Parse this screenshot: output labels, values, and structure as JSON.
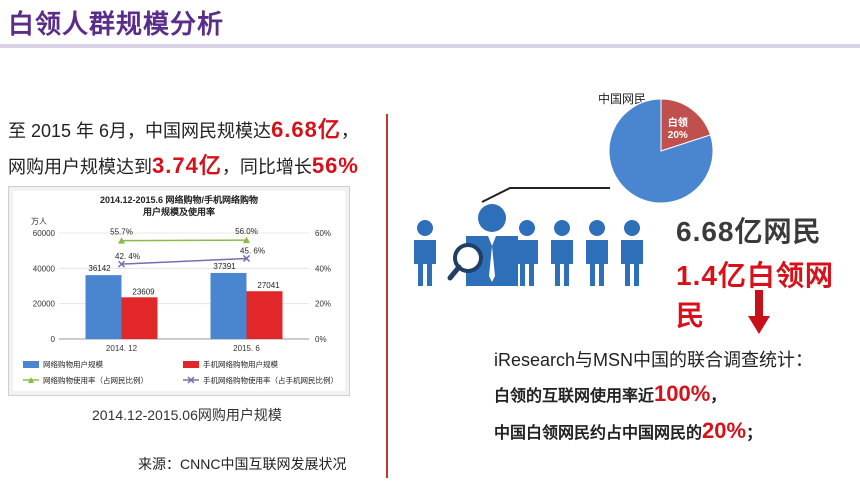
{
  "header": {
    "title": "白领人群规模分析"
  },
  "left": {
    "stats_line1_prefix": "至 2015 年 6月，中国网民规模达",
    "stats_line1_value": "6.68亿",
    "stats_line1_suffix": "，",
    "stats_line2_prefix": "网购用户规模达到",
    "stats_line2_value": "3.74亿",
    "stats_line2_mid": "，同比增长",
    "stats_line2_value2": "56%",
    "caption": "2014.12-2015.06网购用户规模",
    "source": "来源：CNNC中国互联网发展状况"
  },
  "colors": {
    "title": "#5b2d8a",
    "bar_blue": "#4a86d0",
    "bar_red": "#e2272b",
    "line_green": "#8dbb45",
    "line_purple": "#7b6bb0",
    "pie_blue": "#4a86d0",
    "pie_red": "#c0504d",
    "highlight": "#d7101a"
  },
  "chart_data": [
    {
      "type": "bar",
      "title_line1": "2014.12-2015.6 网络购物/手机网络购物",
      "title_line2": "用户规模及使用率",
      "y_unit": "万人",
      "categories": [
        "2014. 12",
        "2015. 6"
      ],
      "yticks": [
        "0",
        "20000",
        "40000",
        "60000"
      ],
      "y2ticks": [
        "0%",
        "20%",
        "40%",
        "60%"
      ],
      "ylim": [
        0,
        60000
      ],
      "y2lim": [
        0,
        60
      ],
      "series": [
        {
          "name": "网络购物用户规模",
          "kind": "bar",
          "values": [
            36142,
            37391
          ],
          "labels": [
            "36142",
            "37391"
          ]
        },
        {
          "name": "手机网络购物用户规模",
          "kind": "bar",
          "values": [
            23609,
            27041
          ],
          "labels": [
            "23609",
            "27041"
          ]
        },
        {
          "name": "网络购物使用率（占网民比例）",
          "kind": "line",
          "values": [
            55.7,
            56.0
          ],
          "labels": [
            "55.7%",
            "56.0%"
          ]
        },
        {
          "name": "手机网络购物使用率（占手机网民比例）",
          "kind": "line",
          "values": [
            42.4,
            45.6
          ],
          "labels": [
            "42. 4%",
            "45. 6%"
          ]
        }
      ],
      "grid": true,
      "legend": "bottom"
    },
    {
      "type": "pie",
      "title": "中国网民",
      "slices": [
        {
          "name": "白领",
          "value": 20,
          "label": "20%"
        },
        {
          "name": "",
          "value": 80
        }
      ]
    }
  ],
  "right": {
    "big1": "6.68亿网民",
    "big2": "1.4亿白领网民",
    "research_line1": "iResearch与MSN中国的联合调查统计：",
    "research_line2_prefix": "白领的互联网使用率近",
    "research_line2_value": "100%",
    "research_line2_suffix": "，",
    "research_line3_prefix": "中国白领网民约占中国网民的",
    "research_line3_value": "20%",
    "research_line3_suffix": "；"
  }
}
